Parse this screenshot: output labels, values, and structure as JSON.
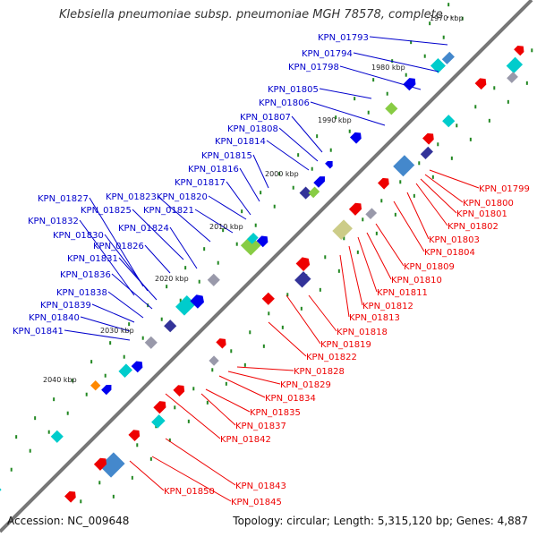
{
  "title": "Klebsiella pneumoniae subsp. pneumoniae MGH 78578, complete ...",
  "footer": {
    "accession_label": "Accession:",
    "accession": "NC_009648",
    "topology_label": "Topology:",
    "topology": "circular",
    "length_label": "Length:",
    "length": "5,315,120 bp",
    "genes_label": "Genes:",
    "genes": "4,887"
  },
  "colors": {
    "backbone": "#777777",
    "plus_strand_label": "#0000cc",
    "minus_strand_label": "#ee0000",
    "tick_dot": "#228822"
  },
  "scale_ticks": [
    "1970 kbp",
    "1980 kbp",
    "1990 kbp",
    "2000 kbp",
    "2010 kbp",
    "2020 kbp",
    "2030 kbp",
    "2040 kbp"
  ],
  "plus_strand_genes": [
    "KPN_01793",
    "KPN_01794",
    "KPN_01798",
    "KPN_01805",
    "KPN_01806",
    "KPN_01807",
    "KPN_01808",
    "KPN_01814",
    "KPN_01815",
    "KPN_01816",
    "KPN_01817",
    "KPN_01820",
    "KPN_01821",
    "KPN_01823",
    "KPN_01824",
    "KPN_01825",
    "KPN_01826",
    "KPN_01827",
    "KPN_01830",
    "KPN_01831",
    "KPN_01832",
    "KPN_01836",
    "KPN_01838",
    "KPN_01839",
    "KPN_01840",
    "KPN_01841"
  ],
  "minus_strand_genes": [
    "KPN_01799",
    "KPN_01800",
    "KPN_01801",
    "KPN_01802",
    "KPN_01803",
    "KPN_01804",
    "KPN_01809",
    "KPN_01810",
    "KPN_01811",
    "KPN_01812",
    "KPN_01813",
    "KPN_01818",
    "KPN_01819",
    "KPN_01822",
    "KPN_01828",
    "KPN_01829",
    "KPN_01834",
    "KPN_01835",
    "KPN_01837",
    "KPN_01842",
    "KPN_01843",
    "KPN_01845",
    "KPN_01850"
  ]
}
